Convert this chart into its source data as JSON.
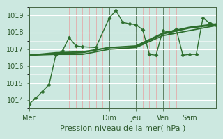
{
  "bg_color": "#cce8e0",
  "plot_bg": "#cce8e0",
  "grid_major_color": "#ffffff",
  "grid_minor_x_color": "#e8a0a0",
  "grid_minor_y_color": "#ffffff",
  "line_color": "#2d6e2d",
  "xlabel": "Pression niveau de la mer( hPa )",
  "ylim": [
    1013.5,
    1019.5
  ],
  "yticks": [
    1014,
    1015,
    1016,
    1017,
    1018,
    1019
  ],
  "xlim": [
    0,
    84
  ],
  "day_labels": [
    "Mer",
    "Dim",
    "Jeu",
    "Ven",
    "Sam"
  ],
  "day_positions": [
    0,
    36,
    48,
    60,
    72
  ],
  "vline_positions": [
    0,
    36,
    48,
    60,
    72
  ],
  "lines": [
    {
      "x": [
        0,
        3,
        6,
        9,
        12,
        15,
        18,
        21,
        24,
        30,
        36,
        39,
        42,
        45,
        48,
        51,
        54,
        57,
        60,
        63,
        66,
        69,
        72,
        75,
        78,
        81,
        84
      ],
      "y": [
        1013.75,
        1014.1,
        1014.5,
        1014.9,
        1016.65,
        1016.9,
        1017.7,
        1017.2,
        1017.15,
        1017.1,
        1018.85,
        1019.3,
        1018.6,
        1018.5,
        1018.45,
        1018.15,
        1016.7,
        1016.65,
        1018.1,
        1018.0,
        1018.2,
        1016.65,
        1016.7,
        1016.7,
        1018.85,
        1018.55,
        1018.45
      ],
      "marker": "D",
      "markersize": 2.5,
      "lw": 1.0
    },
    {
      "x": [
        0,
        12,
        24,
        36,
        48,
        60,
        72,
        84
      ],
      "y": [
        1016.65,
        1016.75,
        1016.8,
        1017.1,
        1017.15,
        1017.9,
        1018.25,
        1018.45
      ],
      "marker": "",
      "markersize": 0,
      "lw": 1.3
    },
    {
      "x": [
        0,
        12,
        24,
        36,
        48,
        60,
        72,
        84
      ],
      "y": [
        1016.65,
        1016.8,
        1016.85,
        1017.1,
        1017.2,
        1017.95,
        1018.3,
        1018.5
      ],
      "marker": "",
      "markersize": 0,
      "lw": 1.3
    },
    {
      "x": [
        0,
        12,
        24,
        36,
        48,
        60,
        72,
        84
      ],
      "y": [
        1016.65,
        1016.7,
        1016.7,
        1017.0,
        1017.1,
        1017.8,
        1018.1,
        1018.4
      ],
      "marker": "",
      "markersize": 0,
      "lw": 1.3
    }
  ],
  "xlabel_fontsize": 8,
  "tick_fontsize": 7
}
